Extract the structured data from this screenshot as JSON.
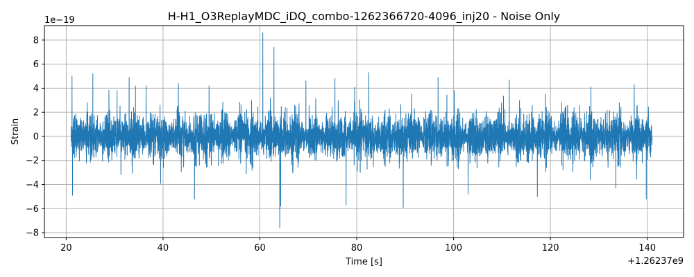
{
  "chart_data": {
    "type": "line",
    "title": "H-H1_O3ReplayMDC_iDQ_combo-1262366720-4096_inj20 - Noise Only",
    "xlabel": "Time [s]",
    "ylabel": "Strain",
    "x_offset_label": "+1.26237e9",
    "y_scale_label": "1e−19",
    "xlim": [
      15.5,
      147.5
    ],
    "ylim": [
      -8.4,
      9.2
    ],
    "x_ticks": [
      20,
      40,
      60,
      80,
      100,
      120,
      140
    ],
    "x_tick_labels": [
      "20",
      "40",
      "60",
      "80",
      "100",
      "120",
      "140"
    ],
    "y_ticks": [
      -8,
      -6,
      -4,
      -2,
      0,
      2,
      4,
      6,
      8
    ],
    "y_tick_labels": [
      "−8",
      "−6",
      "−4",
      "−2",
      "0",
      "2",
      "4",
      "6",
      "8"
    ],
    "grid": true,
    "series": [
      {
        "color": "#1f77b4",
        "x_start": 21.0,
        "x_end": 141.0,
        "typical_amplitude": 2.0,
        "peaks": [
          {
            "x": 21.2,
            "y": 5.0
          },
          {
            "x": 21.3,
            "y": -4.9
          },
          {
            "x": 25.5,
            "y": 5.2
          },
          {
            "x": 30.5,
            "y": 3.8
          },
          {
            "x": 33.0,
            "y": 4.9
          },
          {
            "x": 36.5,
            "y": 4.2
          },
          {
            "x": 39.5,
            "y": -3.9
          },
          {
            "x": 46.5,
            "y": -5.2
          },
          {
            "x": 49.5,
            "y": 4.2
          },
          {
            "x": 60.6,
            "y": 8.6
          },
          {
            "x": 62.9,
            "y": 7.4
          },
          {
            "x": 64.1,
            "y": -7.6
          },
          {
            "x": 64.3,
            "y": -5.8
          },
          {
            "x": 69.5,
            "y": 4.6
          },
          {
            "x": 75.5,
            "y": 4.8
          },
          {
            "x": 77.8,
            "y": -5.7
          },
          {
            "x": 82.5,
            "y": 5.3
          },
          {
            "x": 89.6,
            "y": -5.9
          },
          {
            "x": 96.8,
            "y": 4.9
          },
          {
            "x": 103.0,
            "y": -4.8
          },
          {
            "x": 111.5,
            "y": 4.7
          },
          {
            "x": 117.3,
            "y": -5.0
          },
          {
            "x": 133.5,
            "y": -4.3
          },
          {
            "x": 137.3,
            "y": 4.3
          },
          {
            "x": 139.8,
            "y": -5.2
          }
        ]
      }
    ]
  }
}
